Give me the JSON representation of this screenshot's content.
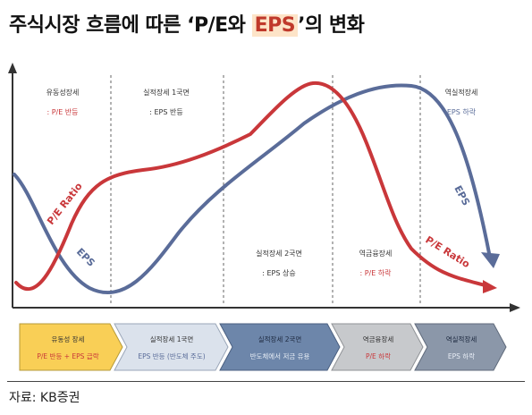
{
  "title": {
    "prefix": "주식시장 흐름에 따른 ‘P/E와 ",
    "highlight": "EPS",
    "suffix": "’의 변화"
  },
  "phases": [
    {
      "name": "유동성장세",
      "desc": ": P/E 반등"
    },
    {
      "name": "실적장세 1국면",
      "desc": ": EPS 반등"
    },
    {
      "name": "실적장세 2국면",
      "desc": ": EPS 상승"
    },
    {
      "name": "역금융장세",
      "desc": ": P/E 하락"
    },
    {
      "name": "역실적장세",
      "desc": "EPS 하락"
    }
  ],
  "arrows": [
    {
      "line1": "유동성 장세",
      "line2": "P/E 반등 + EPS 급락"
    },
    {
      "line1": "실적장세 1국면",
      "line2": "EPS 반등 (반도체 주도)"
    },
    {
      "line1": "실적장세 2국면",
      "line2": "반도체에서 저금 유용"
    },
    {
      "line1": "역금융장세",
      "line2": "P/E 하락"
    },
    {
      "line1": "역실적장세",
      "line2": "EPS 하락"
    }
  ],
  "curve_labels": {
    "pe_left": "P/E Ratio",
    "eps_left": "EPS",
    "eps_right": "EPS",
    "pe_right": "P/E Ratio"
  },
  "source": "자료: KB증권",
  "colors": {
    "pe": "#c9373a",
    "eps": "#5a6c99",
    "highlight_bg": "#fde4c8",
    "arrow_yellow": "#f9cf56",
    "arrow_light": "#dbe2ec",
    "arrow_mid": "#6d86aa",
    "arrow_grey": "#c7c9cc",
    "arrow_dark": "#8b97a9"
  }
}
